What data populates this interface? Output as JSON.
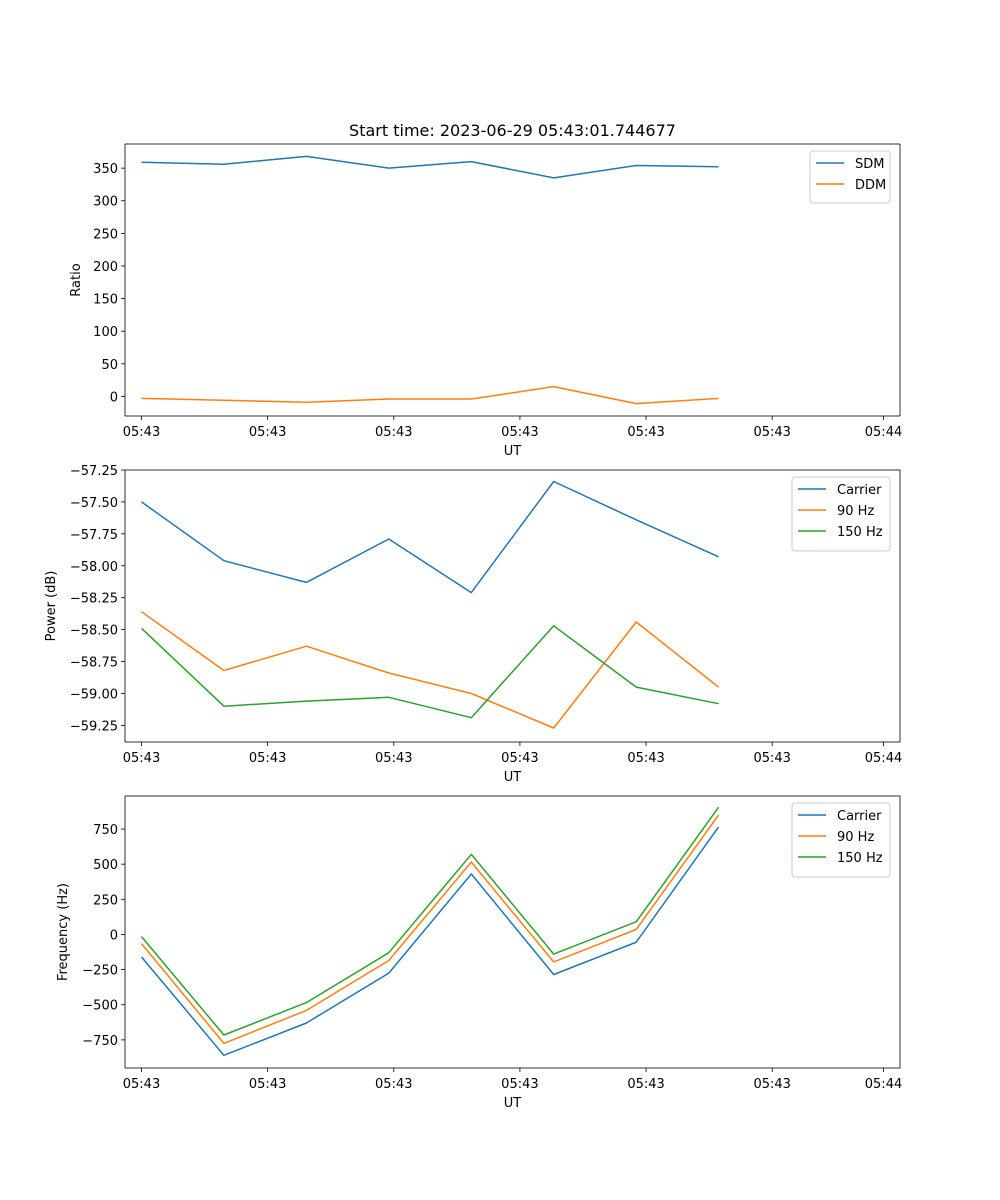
{
  "figure": {
    "title": "Start time: 2023-06-29 05:43:01.744677"
  },
  "colors": {
    "c0": "#1f77b4",
    "c1": "#ff7f0e",
    "c2": "#2ca02c"
  },
  "chart_data": [
    {
      "type": "line",
      "title": "Start time: 2023-06-29 05:43:01.744677",
      "xlabel": "UT",
      "ylabel": "Ratio",
      "x": [
        1,
        2,
        3,
        4,
        5,
        6,
        7,
        8
      ],
      "xlim": [
        0.8,
        10.2
      ],
      "ylim": [
        -30,
        387
      ],
      "x_ticks": [
        {
          "value": 1,
          "label": "05:43"
        },
        {
          "value": 2.53,
          "label": "05:43"
        },
        {
          "value": 4.06,
          "label": "05:43"
        },
        {
          "value": 5.59,
          "label": "05:43"
        },
        {
          "value": 7.12,
          "label": "05:43"
        },
        {
          "value": 8.65,
          "label": "05:43"
        },
        {
          "value": 10,
          "label": "05:44"
        }
      ],
      "y_ticks": [
        {
          "value": 350,
          "label": "350"
        },
        {
          "value": 300,
          "label": "300"
        },
        {
          "value": 250,
          "label": "250"
        },
        {
          "value": 200,
          "label": "200"
        },
        {
          "value": 150,
          "label": "150"
        },
        {
          "value": 100,
          "label": "100"
        },
        {
          "value": 50,
          "label": "50"
        },
        {
          "value": 0,
          "label": "0"
        }
      ],
      "series": [
        {
          "name": "SDM",
          "color": "#1f77b4",
          "values": [
            359,
            356,
            368,
            350,
            360,
            335,
            354,
            352
          ]
        },
        {
          "name": "DDM",
          "color": "#ff7f0e",
          "values": [
            -3,
            -6,
            -9,
            -4,
            -4,
            15,
            -11,
            -3
          ]
        }
      ],
      "legend": "top-right",
      "grid": false
    },
    {
      "type": "line",
      "title": "",
      "xlabel": "UT",
      "ylabel": "Power (dB)",
      "x": [
        1,
        2,
        3,
        4,
        5,
        6,
        7,
        8
      ],
      "xlim": [
        0.8,
        10.2
      ],
      "ylim": [
        -59.38,
        -57.25
      ],
      "x_ticks": [
        {
          "value": 1,
          "label": "05:43"
        },
        {
          "value": 2.53,
          "label": "05:43"
        },
        {
          "value": 4.06,
          "label": "05:43"
        },
        {
          "value": 5.59,
          "label": "05:43"
        },
        {
          "value": 7.12,
          "label": "05:43"
        },
        {
          "value": 8.65,
          "label": "05:43"
        },
        {
          "value": 10,
          "label": "05:44"
        }
      ],
      "y_ticks": [
        {
          "value": -57.25,
          "label": "−57.25"
        },
        {
          "value": -57.5,
          "label": "−57.50"
        },
        {
          "value": -57.75,
          "label": "−57.75"
        },
        {
          "value": -58.0,
          "label": "−58.00"
        },
        {
          "value": -58.25,
          "label": "−58.25"
        },
        {
          "value": -58.5,
          "label": "−58.50"
        },
        {
          "value": -58.75,
          "label": "−58.75"
        },
        {
          "value": -59.0,
          "label": "−59.00"
        },
        {
          "value": -59.25,
          "label": "−59.25"
        }
      ],
      "series": [
        {
          "name": "Carrier",
          "color": "#1f77b4",
          "values": [
            -57.5,
            -57.96,
            -58.13,
            -57.79,
            -58.21,
            -57.34,
            -57.64,
            -57.93
          ]
        },
        {
          "name": "90 Hz",
          "color": "#ff7f0e",
          "values": [
            -58.36,
            -58.82,
            -58.63,
            -58.84,
            -59.0,
            -59.27,
            -58.44,
            -58.95
          ]
        },
        {
          "name": "150 Hz",
          "color": "#2ca02c",
          "values": [
            -58.49,
            -59.1,
            -59.06,
            -59.03,
            -59.19,
            -58.47,
            -58.95,
            -59.08
          ]
        }
      ],
      "legend": "top-right",
      "grid": false
    },
    {
      "type": "line",
      "title": "",
      "xlabel": "UT",
      "ylabel": "Frequency (Hz)",
      "x": [
        1,
        2,
        3,
        4,
        5,
        6,
        7,
        8
      ],
      "xlim": [
        0.8,
        10.2
      ],
      "ylim": [
        -950,
        985
      ],
      "x_ticks": [
        {
          "value": 1,
          "label": "05:43"
        },
        {
          "value": 2.53,
          "label": "05:43"
        },
        {
          "value": 4.06,
          "label": "05:43"
        },
        {
          "value": 5.59,
          "label": "05:43"
        },
        {
          "value": 7.12,
          "label": "05:43"
        },
        {
          "value": 8.65,
          "label": "05:43"
        },
        {
          "value": 10,
          "label": "05:44"
        }
      ],
      "y_ticks": [
        {
          "value": 750,
          "label": "750"
        },
        {
          "value": 500,
          "label": "500"
        },
        {
          "value": 250,
          "label": "250"
        },
        {
          "value": 0,
          "label": "0"
        },
        {
          "value": -250,
          "label": "−250"
        },
        {
          "value": -500,
          "label": "−500"
        },
        {
          "value": -750,
          "label": "−750"
        }
      ],
      "series": [
        {
          "name": "Carrier",
          "color": "#1f77b4",
          "values": [
            -160,
            -860,
            -630,
            -275,
            430,
            -285,
            -55,
            765
          ]
        },
        {
          "name": "90 Hz",
          "color": "#ff7f0e",
          "values": [
            -65,
            -775,
            -540,
            -185,
            515,
            -195,
            35,
            850
          ]
        },
        {
          "name": "150 Hz",
          "color": "#2ca02c",
          "values": [
            -15,
            -715,
            -485,
            -130,
            570,
            -140,
            90,
            905
          ]
        }
      ],
      "legend": "top-right",
      "grid": false
    }
  ]
}
